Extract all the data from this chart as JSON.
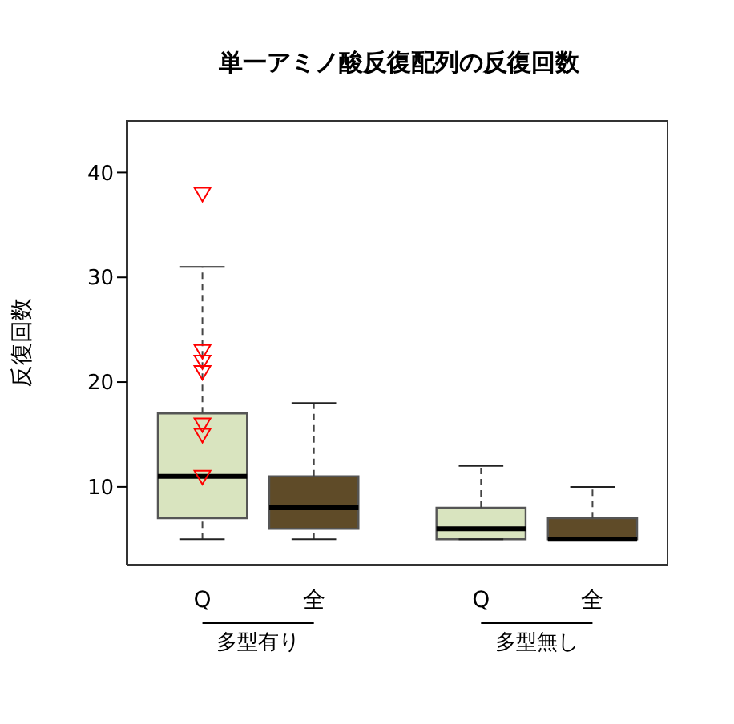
{
  "chart_data": {
    "type": "box",
    "title": "単一アミノ酸反復配列の反復回数",
    "ylabel": "反復回数",
    "categories": [
      "Q",
      "全",
      "Q",
      "全"
    ],
    "annotations": [
      "多型有り",
      "多型無し"
    ],
    "ylim": [
      2.5,
      45
    ],
    "yticks": [
      10,
      20,
      30,
      40
    ],
    "grid": false,
    "series": [
      {
        "type": "box",
        "colors": [
          "#d9e4bf",
          "#5f4b28",
          "#d9e4bf",
          "#5f4b28"
        ],
        "boxes": [
          {
            "low": 5,
            "q1": 7,
            "median": 11,
            "q3": 17,
            "high": 31
          },
          {
            "low": 5,
            "q1": 6,
            "median": 8,
            "q3": 11,
            "high": 18
          },
          {
            "low": 5,
            "q1": 5,
            "median": 6,
            "q3": 8,
            "high": 12
          },
          {
            "low": 5,
            "q1": 5,
            "median": 5,
            "q3": 7,
            "high": 10
          }
        ]
      },
      {
        "type": "scatter",
        "x": [
          "Q",
          "Q",
          "Q",
          "Q",
          "Q",
          "Q",
          "Q"
        ],
        "values": [
          38,
          23,
          22,
          21,
          16,
          15,
          11
        ],
        "color": "#ff0000",
        "marker": "triangle"
      }
    ]
  }
}
